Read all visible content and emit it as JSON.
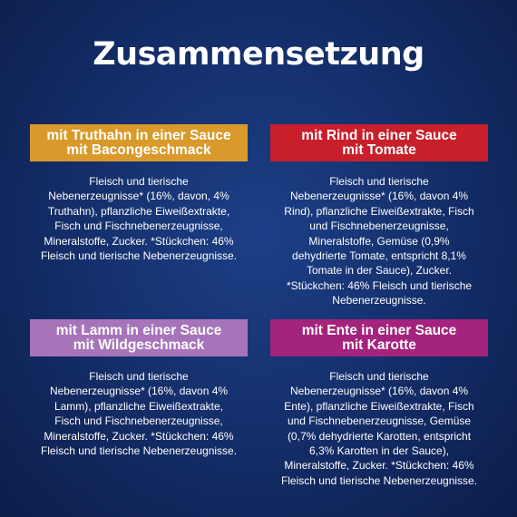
{
  "title": "Zusammensetzung",
  "panels": [
    {
      "heading": [
        "mit Truthahn in einer Sauce",
        "mit Bacongeschmack"
      ],
      "lines": [
        "Fleisch und tierische",
        "Nebenerzeugnisse* (16%, davon, 4%",
        "Truthahn), pflanzliche Eiweißextrakte,",
        "Fisch und Fischnebenerzeugnisse,",
        "Mineralstoffe, Zucker. *Stückchen: 46%",
        "Fleisch und tierische Nebenerzeugnisse."
      ]
    },
    {
      "heading": [
        "mit Rind in einer Sauce",
        "mit Tomate"
      ],
      "lines": [
        "Fleisch und tierische",
        "Nebenerzeugnisse* (16%, davon 4%",
        "Rind), pflanzliche Eiweißextrakte, Fisch",
        "und Fischnebenerzeugnisse,",
        "Mineralstoffe, Gemüse (0,9%",
        "dehydrierte Tomate, entspricht 8,1%",
        "Tomate in der Sauce), Zucker.",
        "*Stückchen: 46% Fleisch und tierische",
        "Nebenerzeugnisse."
      ]
    },
    {
      "heading": [
        "mit Lamm in einer Sauce",
        "mit Wildgeschmack"
      ],
      "lines": [
        "Fleisch und tierische",
        "Nebenerzeugnisse* (16%, davon 4%",
        "Lamm), pflanzliche Eiweißextrakte,",
        "Fisch und Fischnebenerzeugnisse,",
        "Mineralstoffe, Zucker. *Stückchen: 46%",
        "Fleisch und tierische Nebenerzeugnisse."
      ]
    },
    {
      "heading": [
        "mit Ente in einer Sauce",
        "mit Karotte"
      ],
      "lines": [
        "Fleisch und tierische",
        "Nebenerzeugnisse* (16%, davon 4%",
        "Ente), pflanzliche Eiweißextrakte, Fisch",
        "und Fischnebenerzeugnisse, Gemüse",
        "(0,7% dehydrierte Karotten, entspricht",
        "6,3% Karotten in der Sauce),",
        "Mineralstoffe, Zucker. *Stückchen: 46%",
        "Fleisch und tierische Nebenerzeugnisse."
      ]
    }
  ]
}
